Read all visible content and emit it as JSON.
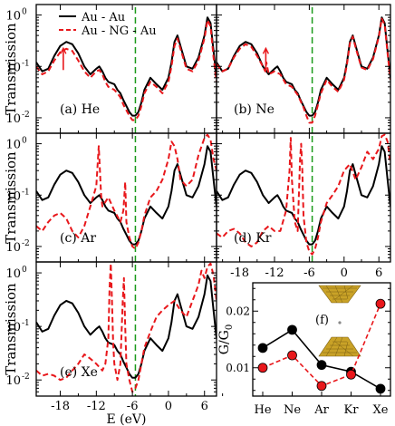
{
  "chart_data": {
    "type": "line",
    "shared": {
      "xlabel": "E (eV)",
      "ylabel": "Transmission",
      "xlim": [
        -22,
        8
      ],
      "xticks": [
        -18,
        -12,
        -6,
        0,
        6
      ],
      "xtick_labels": [
        "-18",
        "-12",
        "-6",
        "0",
        "6"
      ],
      "yscale": "log",
      "ylim": [
        0.005,
        1.6
      ],
      "yticks": [
        0.01,
        0.1,
        1
      ],
      "ytick_labels": [
        "10",
        "10",
        "10"
      ],
      "ytick_exponents": [
        "-2",
        "-1",
        "0"
      ],
      "fermi_level_ev": -5.5,
      "fermi_color": "#1a9a1a",
      "series_colors": {
        "au_au": "#000000",
        "au_ng_au": "#e8171b"
      }
    },
    "legend": [
      {
        "label": "Au - Au",
        "style": "solid",
        "color": "#000000"
      },
      {
        "label": "Au - NG - Au",
        "style": "dashed",
        "color": "#e8171b"
      }
    ],
    "au_au": {
      "x": [
        -22,
        -21,
        -20,
        -19,
        -18,
        -17,
        -16,
        -15,
        -14,
        -13,
        -12,
        -11.5,
        -11,
        -10.5,
        -10,
        -9,
        -8.5,
        -8,
        -7.5,
        -7,
        -6.5,
        -6,
        -5.5,
        -5,
        -4.5,
        -4,
        -3,
        -2,
        -1,
        0,
        0.5,
        1,
        1.5,
        2,
        3,
        4,
        5,
        6,
        6.5,
        7,
        7.5,
        8
      ],
      "y": [
        0.12,
        0.08,
        0.09,
        0.16,
        0.25,
        0.3,
        0.27,
        0.18,
        0.1,
        0.07,
        0.09,
        0.1,
        0.08,
        0.06,
        0.05,
        0.045,
        0.035,
        0.03,
        0.022,
        0.017,
        0.013,
        0.011,
        0.011,
        0.013,
        0.02,
        0.035,
        0.06,
        0.045,
        0.035,
        0.06,
        0.12,
        0.3,
        0.4,
        0.25,
        0.1,
        0.09,
        0.15,
        0.4,
        0.9,
        0.7,
        0.2,
        0.06
      ]
    },
    "panels": [
      {
        "id": "a",
        "label": "(a) He",
        "legend": true,
        "arrow_x": -17.5,
        "ng": {
          "x": [
            -22,
            -21,
            -20,
            -19,
            -18,
            -17,
            -16,
            -15,
            -14,
            -13,
            -12,
            -11.5,
            -11,
            -10.5,
            -10,
            -9,
            -8.5,
            -8,
            -7.5,
            -7,
            -6.5,
            -6,
            -5.5,
            -5,
            -4.5,
            -4,
            -3,
            -2,
            -1,
            0,
            0.5,
            1,
            1.5,
            2,
            3,
            4,
            5,
            6,
            6.5,
            7,
            7.5,
            8
          ],
          "y": [
            0.1,
            0.07,
            0.08,
            0.13,
            0.19,
            0.22,
            0.2,
            0.13,
            0.08,
            0.06,
            0.08,
            0.085,
            0.07,
            0.05,
            0.04,
            0.035,
            0.03,
            0.025,
            0.018,
            0.014,
            0.011,
            0.009,
            0.009,
            0.011,
            0.017,
            0.03,
            0.05,
            0.04,
            0.03,
            0.05,
            0.1,
            0.25,
            0.35,
            0.22,
            0.09,
            0.08,
            0.13,
            0.35,
            0.8,
            0.6,
            0.15,
            0.05
          ]
        }
      },
      {
        "id": "b",
        "label": "(b) Ne",
        "arrow_x": -13.5,
        "ng": {
          "x": [
            -22,
            -21,
            -20,
            -19,
            -18,
            -17,
            -16,
            -15,
            -14,
            -13.6,
            -13.4,
            -13,
            -12,
            -11,
            -10,
            -9,
            -8,
            -7,
            -6.5,
            -6,
            -5.5,
            -5,
            -4.5,
            -4,
            -3,
            -2,
            -1,
            0,
            0.5,
            1,
            1.5,
            2,
            3,
            4,
            5,
            6,
            6.5,
            7,
            7.5,
            8
          ],
          "y": [
            0.11,
            0.08,
            0.09,
            0.15,
            0.22,
            0.27,
            0.24,
            0.16,
            0.1,
            0.08,
            0.12,
            0.07,
            0.08,
            0.07,
            0.045,
            0.04,
            0.028,
            0.016,
            0.011,
            0.008,
            0.008,
            0.011,
            0.018,
            0.03,
            0.055,
            0.04,
            0.032,
            0.055,
            0.11,
            0.28,
            0.38,
            0.23,
            0.095,
            0.085,
            0.14,
            0.38,
            0.85,
            0.65,
            0.18,
            0.055
          ]
        }
      },
      {
        "id": "c",
        "label": "(c) Ar",
        "ng": {
          "x": [
            -22,
            -21,
            -20,
            -19,
            -18,
            -17,
            -16,
            -15,
            -14,
            -13,
            -12,
            -11.6,
            -11.4,
            -11.2,
            -11,
            -10,
            -9,
            -8,
            -7.5,
            -7.2,
            -7,
            -6.5,
            -6,
            -5.5,
            -5,
            -4.5,
            -4,
            -3,
            -2,
            -1,
            0,
            0.5,
            1,
            1.5,
            2,
            3,
            4,
            5,
            6,
            6.5,
            7,
            7.5,
            8
          ],
          "y": [
            0.025,
            0.02,
            0.03,
            0.04,
            0.045,
            0.035,
            0.02,
            0.015,
            0.025,
            0.06,
            0.15,
            0.9,
            0.3,
            0.1,
            0.06,
            0.09,
            0.05,
            0.03,
            0.05,
            0.18,
            0.03,
            0.015,
            0.01,
            0.009,
            0.012,
            0.02,
            0.04,
            0.09,
            0.12,
            0.2,
            0.5,
            1.1,
            0.9,
            0.5,
            0.2,
            0.15,
            0.2,
            0.6,
            1.3,
            1.5,
            1.2,
            0.5,
            0.3
          ]
        }
      },
      {
        "id": "d",
        "label": "(d) Kr",
        "ng": {
          "x": [
            -22,
            -21,
            -20,
            -19,
            -18,
            -17,
            -16,
            -15,
            -14,
            -13,
            -12,
            -11,
            -10,
            -9.4,
            -9.2,
            -9,
            -8.5,
            -8,
            -7.6,
            -7.4,
            -7.2,
            -7,
            -6.5,
            -6,
            -5.5,
            -5,
            -4.5,
            -4,
            -3,
            -2,
            -1,
            0,
            1,
            2,
            3,
            4,
            5,
            6,
            6.5,
            7,
            7.5,
            8
          ],
          "y": [
            0.018,
            0.015,
            0.02,
            0.022,
            0.018,
            0.012,
            0.01,
            0.012,
            0.02,
            0.025,
            0.02,
            0.02,
            0.05,
            0.3,
            1.3,
            0.2,
            0.03,
            0.02,
            0.5,
            1.0,
            0.3,
            0.04,
            0.012,
            0.008,
            0.007,
            0.009,
            0.015,
            0.03,
            0.07,
            0.1,
            0.15,
            0.3,
            0.4,
            0.2,
            0.35,
            0.7,
            0.5,
            0.8,
            1.4,
            1.5,
            1.1,
            0.4
          ]
        }
      },
      {
        "id": "e",
        "label": "(e) Xe",
        "ng": {
          "x": [
            -22,
            -21,
            -20,
            -19,
            -18,
            -17,
            -16,
            -15,
            -14,
            -13,
            -12,
            -11,
            -10.5,
            -10,
            -9.8,
            -9.6,
            -9.4,
            -9.2,
            -9,
            -8.5,
            -8,
            -7.6,
            -7.4,
            -7.2,
            -7,
            -6.5,
            -6,
            -5.5,
            -5,
            -4.5,
            -4,
            -3,
            -2,
            -1,
            0,
            1,
            2,
            3,
            4,
            5,
            5.5,
            6,
            6.5,
            7,
            7.5,
            8
          ],
          "y": [
            0.015,
            0.012,
            0.013,
            0.012,
            0.01,
            0.011,
            0.015,
            0.02,
            0.03,
            0.025,
            0.02,
            0.015,
            0.02,
            0.06,
            0.5,
            1.5,
            0.3,
            0.05,
            0.02,
            0.01,
            0.02,
            0.3,
            0.8,
            0.1,
            0.02,
            0.01,
            0.006,
            0.007,
            0.01,
            0.02,
            0.04,
            0.08,
            0.15,
            0.2,
            0.25,
            0.3,
            0.2,
            0.15,
            0.3,
            0.6,
            1.1,
            0.8,
            1.3,
            1.5,
            0.9,
            0.3
          ]
        }
      }
    ],
    "conductance": {
      "label": "(f)",
      "ylabel": "G/G",
      "ylabel_sub": "0",
      "categories": [
        "He",
        "Ne",
        "Ar",
        "Kr",
        "Xe"
      ],
      "ylim": [
        0.005,
        0.025
      ],
      "yticks": [
        0.01,
        0.02
      ],
      "ytick_labels": [
        "0.01",
        "0.02"
      ],
      "series": [
        {
          "style": "solid",
          "color": "#000000",
          "values": [
            0.0135,
            0.0167,
            0.0105,
            0.0093,
            0.0063
          ]
        },
        {
          "style": "dashed",
          "color": "#e8171b",
          "values": [
            0.01,
            0.0122,
            0.0068,
            0.0088,
            0.0213
          ]
        }
      ]
    }
  }
}
